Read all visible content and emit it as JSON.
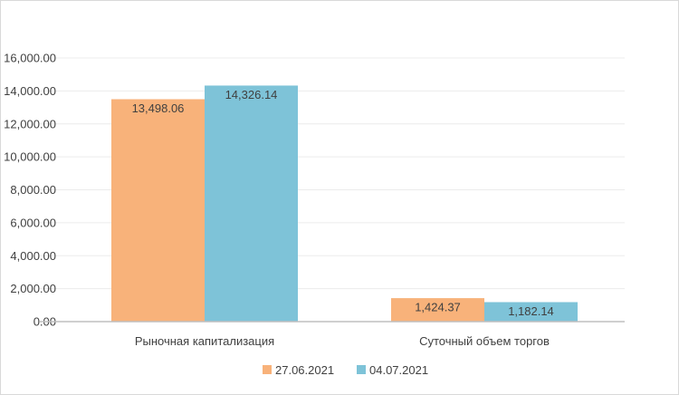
{
  "chart_data": {
    "type": "bar",
    "categories": [
      "Рыночная капитализация",
      "Суточный объем торгов"
    ],
    "series": [
      {
        "name": "27.06.2021",
        "values": [
          13498.06,
          1424.37
        ],
        "labels": [
          "13,498.06",
          "1,424.37"
        ],
        "color": "#F8B27A"
      },
      {
        "name": "04.07.2021",
        "values": [
          14326.14,
          1182.14
        ],
        "labels": [
          "14,326.14",
          "1,182.14"
        ],
        "color": "#7EC3D8"
      }
    ],
    "y_ticks": [
      0,
      2000,
      4000,
      6000,
      8000,
      10000,
      12000,
      14000,
      16000
    ],
    "y_tick_labels": [
      "0.00",
      "2,000.00",
      "4,000.00",
      "6,000.00",
      "8,000.00",
      "10,000.00",
      "12,000.00",
      "14,000.00",
      "16,000.00"
    ],
    "ylim": [
      0,
      16000
    ],
    "grid": true,
    "legend_position": "bottom",
    "title": "",
    "xlabel": "",
    "ylabel": ""
  }
}
